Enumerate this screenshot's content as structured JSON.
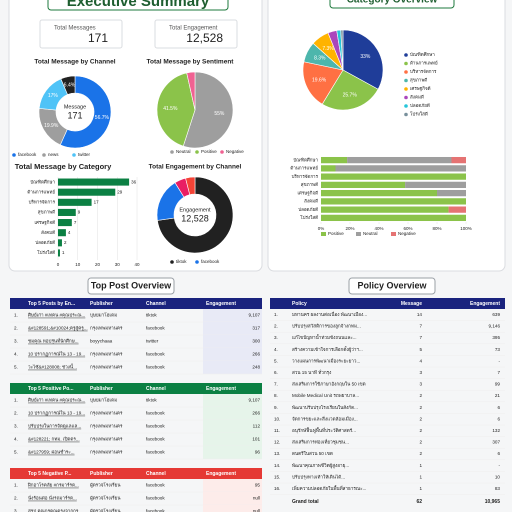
{
  "header": {
    "title": "Executive Summary"
  },
  "kpis": [
    {
      "label": "Total Messages",
      "value": "171"
    },
    {
      "label": "Total Engagement",
      "value": "12,528"
    }
  ],
  "chart_data": [
    {
      "type": "donut",
      "title": "Total Message by Channel",
      "center_label": "Message",
      "center_value": "171",
      "categories": [
        "facebook",
        "news",
        "twitter",
        null
      ],
      "values": [
        56.7,
        19.9,
        17,
        6.4
      ],
      "value_labels": [
        "56.7%",
        "19.9%",
        "17%",
        "6.4%"
      ],
      "colors": [
        "#1a73e8",
        "#9e9e9e",
        "#4fc3f7",
        "#212121"
      ]
    },
    {
      "type": "pie",
      "title": "Total Message by Sentiment",
      "categories": [
        "Neutral",
        "Positive",
        "Negative"
      ],
      "values": [
        55,
        41.5,
        3.5
      ],
      "value_labels": [
        "55%",
        "41.5%",
        null
      ],
      "colors": [
        "#9e9e9e",
        "#8bc34a",
        "#f06292"
      ]
    },
    {
      "type": "bar",
      "title": "Total Message by Category",
      "orientation": "horizontal",
      "categories": [
        "บัณฑิตศึกษา",
        "ด้านการแพทย์",
        "บริหารจัดการ",
        "สุขภาพดี",
        "เศรษฐกิจดี",
        "สังคมดี",
        "ปลอดภัยดี",
        "โปร่งใสดี"
      ],
      "values": [
        36,
        29,
        17,
        9,
        7,
        4,
        2,
        1
      ],
      "color": "#0b8043",
      "xlim": [
        0,
        40
      ],
      "xticks": [
        0,
        10,
        20,
        30,
        40
      ],
      "grid": true
    },
    {
      "type": "donut",
      "title": "Total Engagement by Channel",
      "center_label": "Engagement",
      "center_value": "12,528",
      "categories": [
        "tiktok",
        "facebook",
        null,
        null
      ],
      "values": [
        72.7,
        18.5,
        4.8,
        4
      ],
      "colors": [
        "#212121",
        "#1a73e8",
        "#e91e63",
        "#f44336"
      ]
    },
    {
      "type": "pie",
      "title": "Category Overview",
      "categories": [
        "บัณฑิตศึกษา",
        "ด้านการแพทย์",
        "บริหารจัดการ",
        "สุขภาพดี",
        "เศรษฐกิจดี",
        "สังคมดี",
        "ปลอดภัยดี",
        "โปร่งใสดี"
      ],
      "values": [
        33,
        25.7,
        19.6,
        8.3,
        7.3,
        3.6,
        1.6,
        0.9
      ],
      "value_labels": [
        "33%",
        "25.7%",
        "19.6%",
        "8.3%",
        "7.3%",
        null,
        null,
        null
      ],
      "colors": [
        "#1f3d99",
        "#8bc34a",
        "#ff7043",
        "#4db6ac",
        "#ffb300",
        "#ab47bc",
        "#26c6da",
        "#78909c"
      ]
    },
    {
      "type": "bar",
      "orientation": "horizontal",
      "stacked": true,
      "categories": [
        "บัณฑิตศึกษา",
        "ด้านการแพทย์",
        "บริหารจัดการ",
        "สุขภาพดี",
        "เศรษฐกิจดี",
        "สังคมดี",
        "ปลอดภัยดี",
        "โปร่งใสดี"
      ],
      "series": [
        {
          "name": "Positive",
          "color": "#8bc34a",
          "values": [
            18,
            10,
            100,
            58,
            80,
            100,
            88,
            100
          ]
        },
        {
          "name": "Neutral",
          "color": "#9e9e9e",
          "values": [
            72,
            90,
            0,
            42,
            20,
            0,
            0,
            0
          ]
        },
        {
          "name": "Negative",
          "color": "#e57373",
          "values": [
            10,
            0,
            0,
            0,
            0,
            0,
            12,
            0
          ]
        }
      ],
      "xlim": [
        0,
        100
      ],
      "xticks": [
        {
          "value": 0,
          "label": "0%"
        },
        {
          "value": 20,
          "label": "20%"
        },
        {
          "value": 40,
          "label": "40%"
        },
        {
          "value": 60,
          "label": "60%"
        },
        {
          "value": 80,
          "label": "80%"
        },
        {
          "value": 100,
          "label": "100%"
        }
      ],
      "grid": false
    }
  ],
  "top_post_overview": {
    "title": "Top Post Overview",
    "tables": [
      {
        "header": [
          "Top 5 Posts by En...",
          "Publisher",
          "Channel",
          "Engagement"
        ],
        "rows": [
          [
            "1.",
            "ศิษย์เก่า #เทคน #คุณประณ...",
            "บุษยมาโฮเดม",
            "tiktok",
            "9,107"
          ],
          [
            "2.",
            "&#128591;&#10024;ครูสู่ครู...",
            "กรุงเทพมหานคร",
            "facebook",
            "317"
          ],
          [
            "3.",
            "ชมคุณ หอปรุ่นที่นักศึกษ...",
            "boyychaaa",
            "twitter",
            "300"
          ],
          [
            "4.",
            "10 ปรากฏการณ์ใน 13 - 19...",
            "กรุงเทพมหานคร",
            "facebook",
            "266"
          ],
          [
            "5.",
            "วะไซ้&#128008; ช่วงนี้...",
            "กรุงเทพมหานคร",
            "facebook",
            "248"
          ]
        ]
      },
      {
        "header": [
          "Top 5 Positive Po...",
          "Publisher",
          "Channel",
          "Engagement"
        ],
        "rows": [
          [
            "1.",
            "ศิษย์เก่า #เทคน #คุณประณ...",
            "บุษยมาโฮเดม",
            "tiktok",
            "9,107"
          ],
          [
            "2.",
            "10 ปรากฏการณ์ใน 13 - 19...",
            "กรุงเทพมหานคร",
            "facebook",
            "266"
          ],
          [
            "3.",
            "ปรับปรุงในการจัดดูแลแล...",
            "กรุงเทพมหานคร",
            "facebook",
            "112"
          ],
          [
            "4.",
            "&#128221; กทม. เปิดตร...",
            "กรุงเทพมหานคร",
            "facebook",
            "101"
          ],
          [
            "5.",
            "&#127959; ผ่อนชำระ...",
            "กรุงเทพมหานคร",
            "facebook",
            "96"
          ]
        ]
      },
      {
        "header": [
          "Top 5 Negative P...",
          "Publisher",
          "Channel",
          "Engagement"
        ],
        "rows": [
          [
            "1.",
            "ฝึกอาโรคลัย #กรมาร์รต...",
            "ผู้ตรวจโรงเรียน",
            "facebook",
            "95"
          ],
          [
            "2.",
            "นั่งร้อนต่อ นั่งรถมาร์รต...",
            "ผู้ตรวจโรงเรียน",
            "facebook",
            "null"
          ],
          [
            "3.",
            "สรุป คุณกรคุณดรงจากกร...",
            "ผู้ตรวจโรงเรียน",
            "facebook",
            "null"
          ]
        ]
      }
    ]
  },
  "policy_overview": {
    "title": "Policy Overview",
    "header": [
      "Policy",
      "Message",
      "Engagement"
    ],
    "rows": [
      [
        "1.",
        "มหานคร ผลงานต่อเนื่อง พัฒนาเมือง...",
        "14",
        "639"
      ],
      [
        "2.",
        "ปรับปรุงสวัสดิการของลูกจ้างกทม...",
        "7",
        "9,146"
      ],
      [
        "3.",
        "แก้ไขปัญหาน้ำท่วมขังถนนและ...",
        "7",
        "395"
      ],
      [
        "4.",
        "สร้างความเข้าใจการเลือกตั้งผู้ว่าฯ...",
        "5",
        "73"
      ],
      [
        "5.",
        "วางแผนการพัฒนาเมืองระยะยาว...",
        "4",
        "-"
      ],
      [
        "6.",
        "สวน 15 นาที ทั่วกรุง",
        "3",
        "7"
      ],
      [
        "7.",
        "ส่งเสริมการใช้ภาษาอังกฤษใน 50 เขต",
        "3",
        "99"
      ],
      [
        "8.",
        "Mobile Medical Unit รถพยาบาล...",
        "2",
        "21"
      ],
      [
        "9.",
        "พัฒนาปรับปรุงโรงเรียนในสังกัด...",
        "2",
        "6"
      ],
      [
        "10.",
        "จัดการขยะและสิ่งแวดล้อมเมือง...",
        "2",
        "6"
      ],
      [
        "11.",
        "อนุรักษ์ฟื้นฟูพื้นที่ประวัติศาสตร์...",
        "2",
        "132"
      ],
      [
        "12.",
        "ส่งเสริมการท่องเที่ยวชุมชน...",
        "2",
        "307"
      ],
      [
        "13.",
        "ดนตรีในสวน 50 เขต",
        "2",
        "6"
      ],
      [
        "14.",
        "พัฒนาคุณภาพชีวิตผู้สูงอายุ...",
        "1",
        "-"
      ],
      [
        "15.",
        "ปรับปรุงทางเท้าให้เดินได้...",
        "1",
        "10"
      ],
      [
        "16.",
        "เพิ่มความปลอดภัยในพื้นที่สาธารณะ...",
        "1",
        "83"
      ]
    ],
    "total": [
      "Grand total",
      "62",
      "10,965"
    ]
  }
}
